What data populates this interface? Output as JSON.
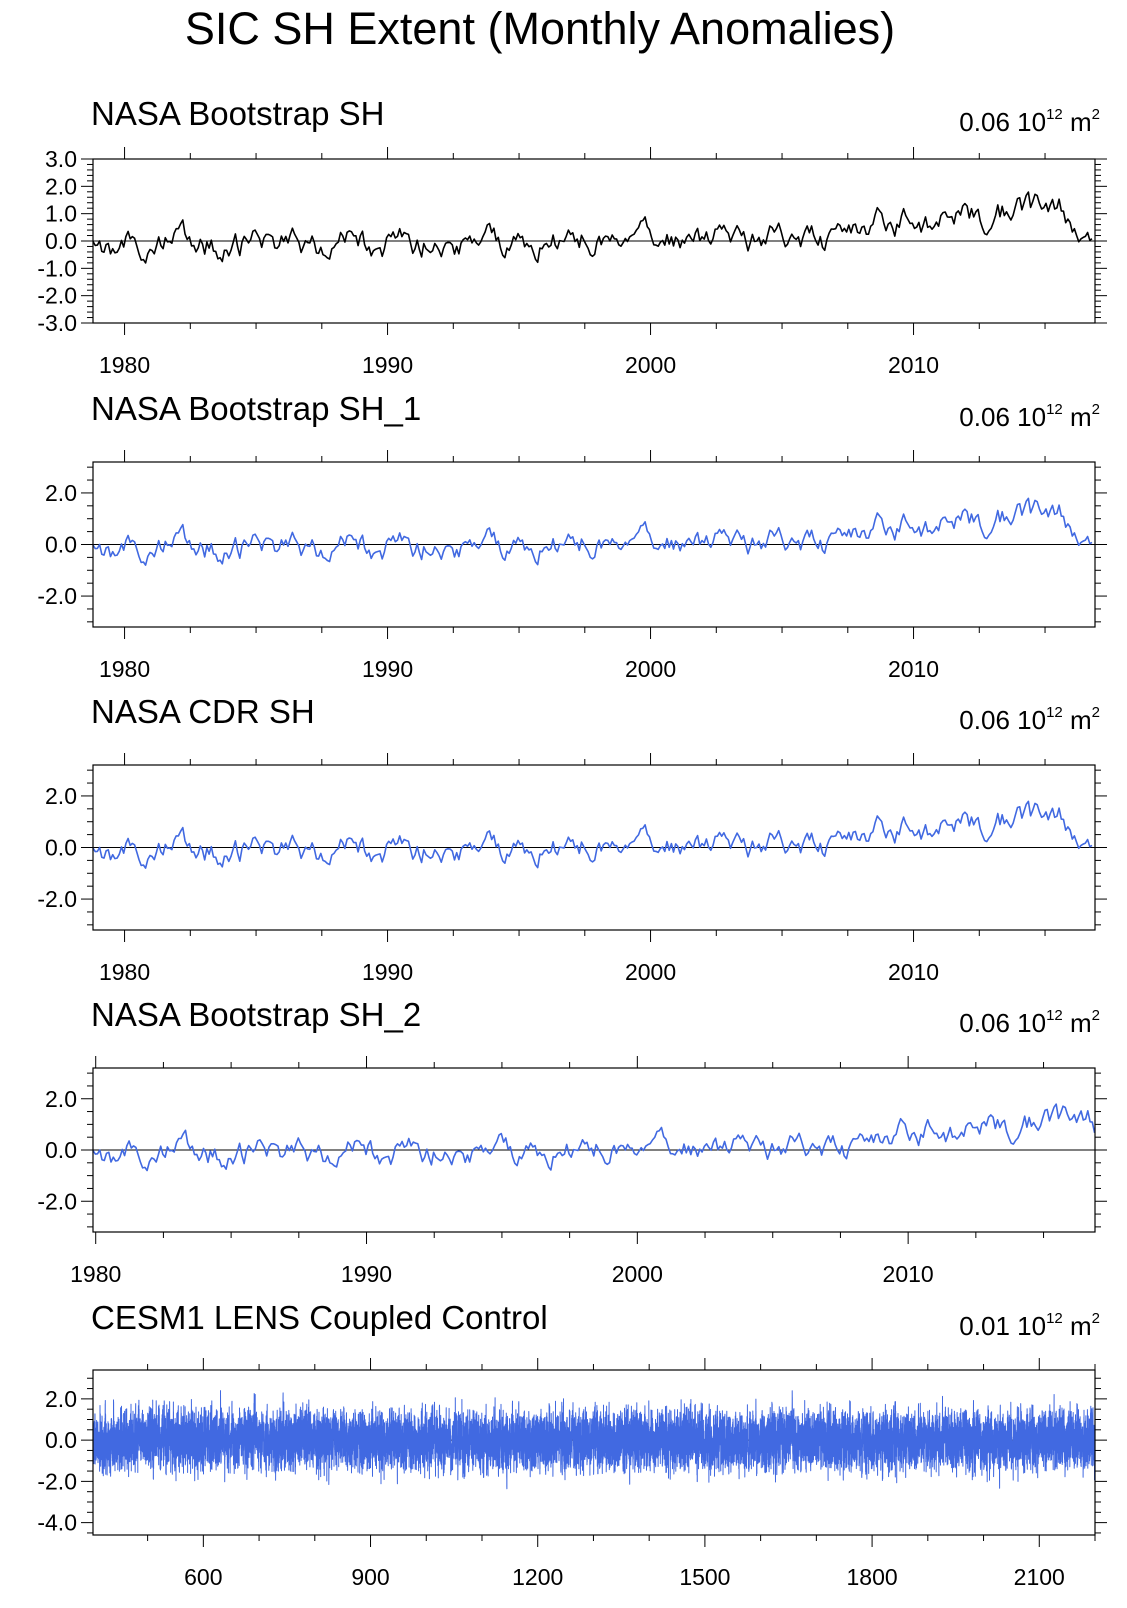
{
  "figure_title": "SIC SH Extent (Monthly Anomalies)",
  "colors": {
    "observed": "#000000",
    "model": "#4169e1",
    "missing": "#a0a0a0"
  },
  "chart_data": [
    {
      "type": "line",
      "title": "NASA Bootstrap SH",
      "annotation": {
        "value": "0.06",
        "base": "10",
        "exp": "12",
        "unit": "m",
        "unit_exp": "2"
      },
      "line_color": "#000000",
      "xlim": [
        1978.8,
        2016.9
      ],
      "ylim": [
        -3.0,
        3.0
      ],
      "yticks": [
        3.0,
        2.0,
        1.0,
        0.0,
        -1.0,
        -2.0,
        -3.0
      ],
      "ytick_labels": [
        "3.0",
        "2.0",
        "1.0",
        "0.0",
        "-1.0",
        "-2.0",
        "-3.0"
      ],
      "xticks": [
        1980,
        1990,
        2000,
        2010
      ],
      "xtick_labels": [
        "1980",
        "1990",
        "2000",
        "2010"
      ],
      "x_minor": 2,
      "series": [
        {
          "name": "NASA Bootstrap SH",
          "x_start": 1978.8,
          "x_step": 0.0833,
          "seed": 1,
          "values": []
        }
      ]
    },
    {
      "type": "line",
      "title": "NASA Bootstrap SH_1",
      "annotation": {
        "value": "0.06",
        "base": "10",
        "exp": "12",
        "unit": "m",
        "unit_exp": "2"
      },
      "line_color": "#4169e1",
      "xlim": [
        1978.8,
        2016.9
      ],
      "ylim": [
        -3.2,
        3.2
      ],
      "yticks": [
        2.0,
        0.0,
        -2.0
      ],
      "ytick_labels": [
        "2.0",
        "0.0",
        "-2.0"
      ],
      "xticks": [
        1980,
        1990,
        2000,
        2010
      ],
      "xtick_labels": [
        "1980",
        "1990",
        "2000",
        "2010"
      ],
      "x_minor": 2,
      "series": [
        {
          "name": "NASA Bootstrap SH_1",
          "x_start": 1978.8,
          "x_step": 0.0833,
          "seed": 1,
          "values": []
        }
      ]
    },
    {
      "type": "line",
      "title": "NASA CDR SH",
      "annotation": {
        "value": "0.06",
        "base": "10",
        "exp": "12",
        "unit": "m",
        "unit_exp": "2"
      },
      "line_color": "#4169e1",
      "xlim": [
        1978.8,
        2016.9
      ],
      "ylim": [
        -3.2,
        3.2
      ],
      "yticks": [
        2.0,
        0.0,
        -2.0
      ],
      "ytick_labels": [
        "2.0",
        "0.0",
        "-2.0"
      ],
      "xticks": [
        1980,
        1990,
        2000,
        2010
      ],
      "xtick_labels": [
        "1980",
        "1990",
        "2000",
        "2010"
      ],
      "x_minor": 2,
      "series": [
        {
          "name": "NASA CDR SH",
          "x_start": 1978.8,
          "x_step": 0.0833,
          "seed": 1,
          "values": []
        }
      ]
    },
    {
      "type": "line",
      "title": "NASA Bootstrap SH_2",
      "annotation": {
        "value": "0.06",
        "base": "10",
        "exp": "12",
        "unit": "m",
        "unit_exp": "2"
      },
      "line_color": "#4169e1",
      "xlim": [
        1979.9,
        2016.9
      ],
      "ylim": [
        -3.2,
        3.2
      ],
      "yticks": [
        2.0,
        0.0,
        -2.0
      ],
      "ytick_labels": [
        "2.0",
        "0.0",
        "-2.0"
      ],
      "xticks": [
        1980,
        1990,
        2000,
        2010
      ],
      "xtick_labels": [
        "1980",
        "1990",
        "2000",
        "2010"
      ],
      "x_minor": 2,
      "series": [
        {
          "name": "NASA Bootstrap SH_2",
          "x_start": 1979.9,
          "x_step": 0.0833,
          "seed": 1,
          "values": []
        }
      ]
    },
    {
      "type": "line",
      "title": "CESM1 LENS Coupled Control",
      "annotation": {
        "value": "0.01",
        "base": "10",
        "exp": "12",
        "unit": "m",
        "unit_exp": "2"
      },
      "line_color": "#4169e1",
      "xlim": [
        402,
        2200
      ],
      "ylim": [
        -4.6,
        3.4
      ],
      "yticks": [
        2.0,
        0.0,
        -2.0,
        -4.0
      ],
      "ytick_labels": [
        "2.0",
        "0.0",
        "-2.0",
        "-4.0"
      ],
      "xticks": [
        600,
        900,
        1200,
        1500,
        1800,
        2100
      ],
      "xtick_labels": [
        "600",
        "900",
        "1200",
        "1500",
        "1800",
        "2100"
      ],
      "x_minor": 3,
      "series": [
        {
          "name": "CESM1 LENS Coupled Control",
          "x_start": 402,
          "x_step": 0.0833,
          "seed": 7,
          "values": []
        }
      ]
    }
  ]
}
